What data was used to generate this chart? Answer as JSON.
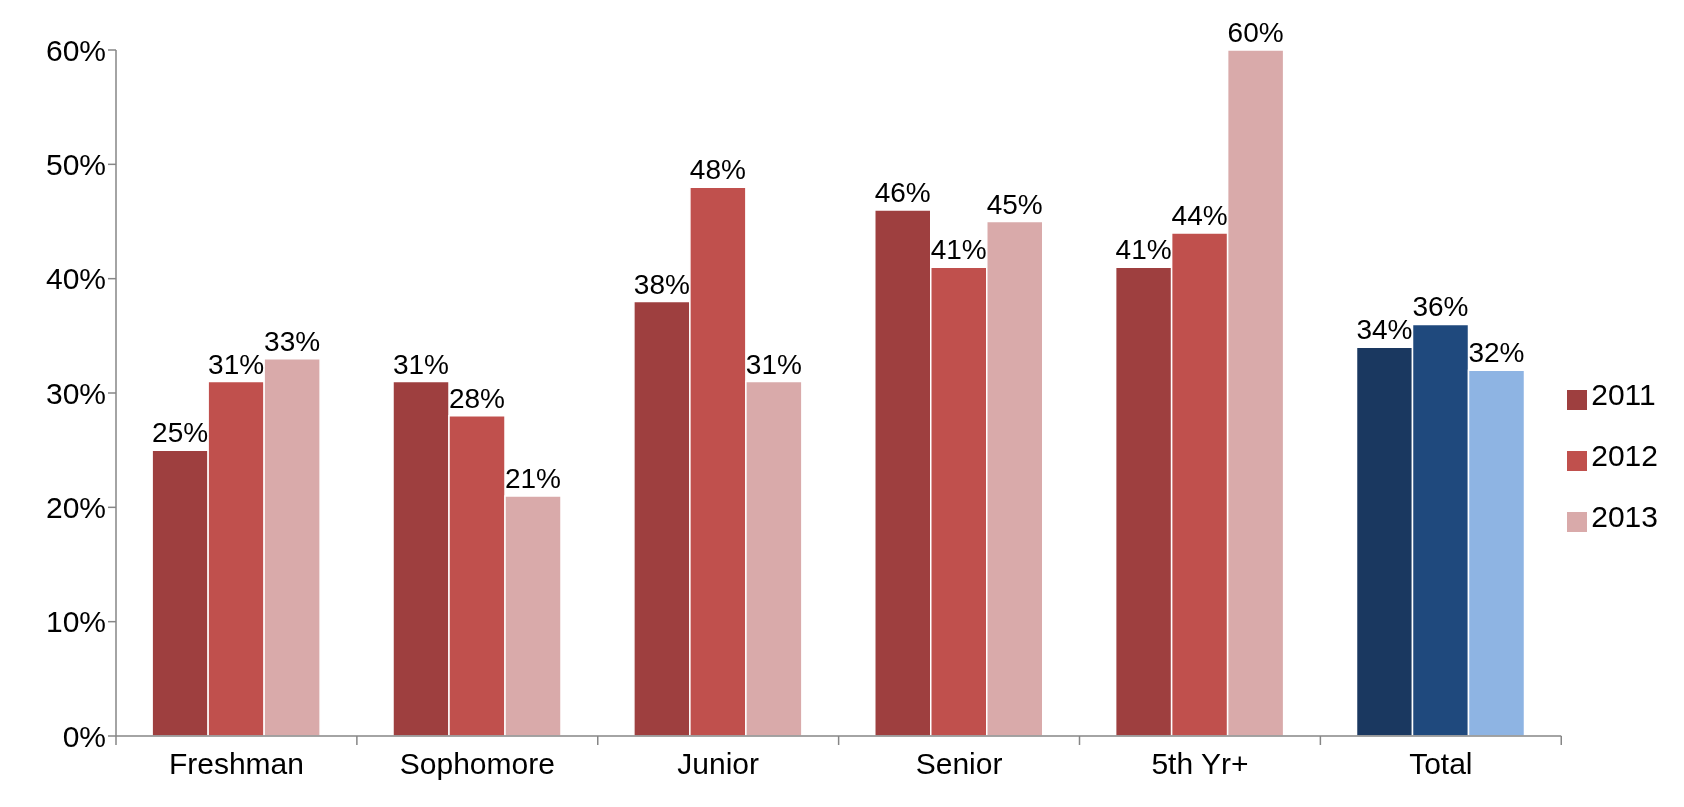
{
  "chart_data": {
    "type": "bar",
    "categories": [
      "Freshman",
      "Sophomore",
      "Junior",
      "Senior",
      "5th Yr+",
      "Total"
    ],
    "series": [
      {
        "name": "2011",
        "color": "#9e3f3f",
        "colors": [
          "#9e3f3f",
          "#9e3f3f",
          "#9e3f3f",
          "#9e3f3f",
          "#9e3f3f",
          "#1a3860"
        ],
        "values": [
          25,
          31,
          38,
          46,
          41,
          34
        ],
        "value_labels": [
          "25%",
          "31%",
          "38%",
          "46%",
          "41%",
          "34%"
        ]
      },
      {
        "name": "2012",
        "color": "#c0504d",
        "colors": [
          "#c0504d",
          "#c0504d",
          "#c0504d",
          "#c0504d",
          "#c0504d",
          "#1f497d"
        ],
        "values": [
          31,
          28,
          48,
          41,
          44,
          36
        ],
        "value_labels": [
          "31%",
          "28%",
          "48%",
          "41%",
          "44%",
          "36%"
        ]
      },
      {
        "name": "2013",
        "color": "#d9aaaa",
        "colors": [
          "#d9aaaa",
          "#d9aaaa",
          "#d9aaaa",
          "#d9aaaa",
          "#d9aaaa",
          "#8eb4e3"
        ],
        "values": [
          33,
          21,
          31,
          45,
          60,
          32
        ],
        "value_labels": [
          "33%",
          "21%",
          "31%",
          "45%",
          "60%",
          "32%"
        ]
      }
    ],
    "ylim": [
      0,
      60
    ],
    "yticks": [
      {
        "value": 0,
        "label": "0%"
      },
      {
        "value": 10,
        "label": "10%"
      },
      {
        "value": 20,
        "label": "20%"
      },
      {
        "value": 30,
        "label": "30%"
      },
      {
        "value": 40,
        "label": "40%"
      },
      {
        "value": 50,
        "label": "50%"
      },
      {
        "value": 60,
        "label": "60%"
      }
    ],
    "legend": "right"
  }
}
